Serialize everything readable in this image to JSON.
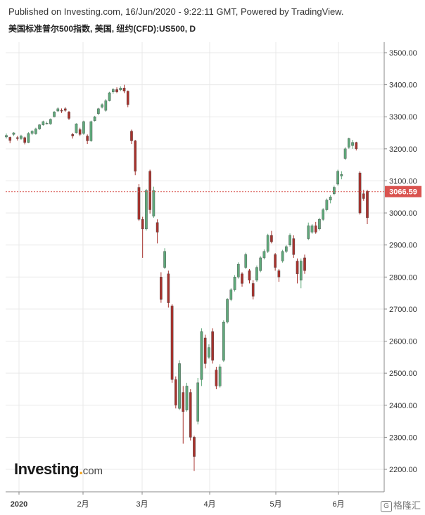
{
  "header": {
    "published": "Published on Investing.com, 16/Jun/2020 - 9:22:11 GMT, Powered by TradingView.",
    "instrument": "美国标准普尔500指数, 美国, 纽约(CFD):US500, D"
  },
  "logo": {
    "main": "Investing",
    "suffix": "com"
  },
  "watermark": {
    "text": "格隆汇"
  },
  "colors": {
    "up": "#5fa97b",
    "down": "#a8322d",
    "last_price": "#d9534f",
    "grid": "#e9e9e9"
  },
  "chart_data": {
    "type": "candlestick",
    "title": "美国标准普尔500指数, 美国, 纽约(CFD):US500, D",
    "ylim": [
      2160,
      3540
    ],
    "y_ticks": [
      2200,
      2300,
      2400,
      2500,
      2600,
      2700,
      2800,
      2900,
      3000,
      3100,
      3200,
      3300,
      3400,
      3500
    ],
    "x_tick_labels": [
      "2020",
      "2月",
      "3月",
      "4月",
      "5月",
      "6月"
    ],
    "last_price": 3066.59,
    "candles": [
      {
        "o": 3237,
        "c": 3242,
        "h": 3248,
        "l": 3232
      },
      {
        "o": 3236,
        "c": 3226,
        "h": 3238,
        "l": 3218
      },
      {
        "o": 3245,
        "c": 3250,
        "h": 3252,
        "l": 3240
      },
      {
        "o": 3235,
        "c": 3232,
        "h": 3240,
        "l": 3226
      },
      {
        "o": 3232,
        "c": 3240,
        "h": 3244,
        "l": 3228
      },
      {
        "o": 3235,
        "c": 3220,
        "h": 3238,
        "l": 3214
      },
      {
        "o": 3220,
        "c": 3248,
        "h": 3252,
        "l": 3218
      },
      {
        "o": 3248,
        "c": 3255,
        "h": 3258,
        "l": 3243
      },
      {
        "o": 3247,
        "c": 3262,
        "h": 3266,
        "l": 3244
      },
      {
        "o": 3262,
        "c": 3275,
        "h": 3277,
        "l": 3259
      },
      {
        "o": 3275,
        "c": 3285,
        "h": 3288,
        "l": 3272
      },
      {
        "o": 3280,
        "c": 3280,
        "h": 3285,
        "l": 3276
      },
      {
        "o": 3278,
        "c": 3292,
        "h": 3295,
        "l": 3275
      },
      {
        "o": 3300,
        "c": 3315,
        "h": 3318,
        "l": 3298
      },
      {
        "o": 3318,
        "c": 3325,
        "h": 3330,
        "l": 3315
      },
      {
        "o": 3320,
        "c": 3318,
        "h": 3326,
        "l": 3312
      },
      {
        "o": 3325,
        "c": 3320,
        "h": 3330,
        "l": 3316
      },
      {
        "o": 3315,
        "c": 3295,
        "h": 3318,
        "l": 3290
      },
      {
        "o": 3245,
        "c": 3240,
        "h": 3250,
        "l": 3232
      },
      {
        "o": 3250,
        "c": 3278,
        "h": 3280,
        "l": 3248
      },
      {
        "o": 3260,
        "c": 3245,
        "h": 3266,
        "l": 3240
      },
      {
        "o": 3248,
        "c": 3285,
        "h": 3288,
        "l": 3244
      },
      {
        "o": 3240,
        "c": 3225,
        "h": 3245,
        "l": 3215
      },
      {
        "o": 3225,
        "c": 3285,
        "h": 3288,
        "l": 3222
      },
      {
        "o": 3288,
        "c": 3300,
        "h": 3303,
        "l": 3285
      },
      {
        "o": 3310,
        "c": 3325,
        "h": 3328,
        "l": 3305
      },
      {
        "o": 3330,
        "c": 3338,
        "h": 3342,
        "l": 3326
      },
      {
        "o": 3320,
        "c": 3350,
        "h": 3355,
        "l": 3316
      },
      {
        "o": 3350,
        "c": 3375,
        "h": 3378,
        "l": 3348
      },
      {
        "o": 3378,
        "c": 3385,
        "h": 3390,
        "l": 3372
      },
      {
        "o": 3385,
        "c": 3378,
        "h": 3392,
        "l": 3374
      },
      {
        "o": 3384,
        "c": 3390,
        "h": 3395,
        "l": 3380
      },
      {
        "o": 3390,
        "c": 3380,
        "h": 3400,
        "l": 3374
      },
      {
        "o": 3380,
        "c": 3338,
        "h": 3382,
        "l": 3330
      },
      {
        "o": 3255,
        "c": 3225,
        "h": 3260,
        "l": 3215
      },
      {
        "o": 3225,
        "c": 3130,
        "h": 3228,
        "l": 3118
      },
      {
        "o": 3080,
        "c": 2980,
        "h": 3090,
        "l": 2975
      },
      {
        "o": 2980,
        "c": 2950,
        "h": 2988,
        "l": 2860
      },
      {
        "o": 2950,
        "c": 3070,
        "h": 3075,
        "l": 2945
      },
      {
        "o": 3130,
        "c": 3010,
        "h": 3135,
        "l": 2998
      },
      {
        "o": 2990,
        "c": 3070,
        "h": 3082,
        "l": 2985
      },
      {
        "o": 2970,
        "c": 2940,
        "h": 2980,
        "l": 2905
      },
      {
        "o": 2800,
        "c": 2730,
        "h": 2815,
        "l": 2720
      },
      {
        "o": 2830,
        "c": 2880,
        "h": 2890,
        "l": 2825
      },
      {
        "o": 2810,
        "c": 2720,
        "h": 2820,
        "l": 2705
      },
      {
        "o": 2710,
        "c": 2480,
        "h": 2715,
        "l": 2470
      },
      {
        "o": 2480,
        "c": 2400,
        "h": 2490,
        "l": 2390
      },
      {
        "o": 2390,
        "c": 2530,
        "h": 2540,
        "l": 2385
      },
      {
        "o": 2440,
        "c": 2380,
        "h": 2460,
        "l": 2280
      },
      {
        "o": 2385,
        "c": 2460,
        "h": 2470,
        "l": 2380
      },
      {
        "o": 2440,
        "c": 2300,
        "h": 2450,
        "l": 2290
      },
      {
        "o": 2300,
        "c": 2240,
        "h": 2305,
        "l": 2195
      },
      {
        "o": 2350,
        "c": 2470,
        "h": 2485,
        "l": 2340
      },
      {
        "o": 2480,
        "c": 2630,
        "h": 2640,
        "l": 2460
      },
      {
        "o": 2610,
        "c": 2530,
        "h": 2620,
        "l": 2515
      },
      {
        "o": 2550,
        "c": 2580,
        "h": 2590,
        "l": 2545
      },
      {
        "o": 2630,
        "c": 2540,
        "h": 2640,
        "l": 2530
      },
      {
        "o": 2510,
        "c": 2460,
        "h": 2520,
        "l": 2450
      },
      {
        "o": 2460,
        "c": 2520,
        "h": 2528,
        "l": 2455
      },
      {
        "o": 2540,
        "c": 2660,
        "h": 2665,
        "l": 2535
      },
      {
        "o": 2660,
        "c": 2730,
        "h": 2735,
        "l": 2655
      },
      {
        "o": 2730,
        "c": 2760,
        "h": 2765,
        "l": 2725
      },
      {
        "o": 2760,
        "c": 2800,
        "h": 2806,
        "l": 2755
      },
      {
        "o": 2800,
        "c": 2840,
        "h": 2846,
        "l": 2795
      },
      {
        "o": 2810,
        "c": 2780,
        "h": 2815,
        "l": 2770
      },
      {
        "o": 2830,
        "c": 2870,
        "h": 2876,
        "l": 2825
      },
      {
        "o": 2820,
        "c": 2790,
        "h": 2825,
        "l": 2780
      },
      {
        "o": 2780,
        "c": 2740,
        "h": 2790,
        "l": 2730
      },
      {
        "o": 2790,
        "c": 2830,
        "h": 2836,
        "l": 2785
      },
      {
        "o": 2820,
        "c": 2860,
        "h": 2865,
        "l": 2815
      },
      {
        "o": 2860,
        "c": 2880,
        "h": 2886,
        "l": 2855
      },
      {
        "o": 2880,
        "c": 2930,
        "h": 2935,
        "l": 2875
      },
      {
        "o": 2930,
        "c": 2910,
        "h": 2944,
        "l": 2905
      },
      {
        "o": 2870,
        "c": 2830,
        "h": 2875,
        "l": 2820
      },
      {
        "o": 2820,
        "c": 2800,
        "h": 2825,
        "l": 2785
      },
      {
        "o": 2850,
        "c": 2880,
        "h": 2885,
        "l": 2845
      },
      {
        "o": 2880,
        "c": 2895,
        "h": 2900,
        "l": 2875
      },
      {
        "o": 2900,
        "c": 2930,
        "h": 2936,
        "l": 2895
      },
      {
        "o": 2920,
        "c": 2870,
        "h": 2930,
        "l": 2860
      },
      {
        "o": 2850,
        "c": 2810,
        "h": 2858,
        "l": 2780
      },
      {
        "o": 2790,
        "c": 2850,
        "h": 2858,
        "l": 2765
      },
      {
        "o": 2860,
        "c": 2820,
        "h": 2870,
        "l": 2810
      },
      {
        "o": 2920,
        "c": 2960,
        "h": 2970,
        "l": 2915
      },
      {
        "o": 2940,
        "c": 2960,
        "h": 2965,
        "l": 2935
      },
      {
        "o": 2960,
        "c": 2940,
        "h": 2972,
        "l": 2935
      },
      {
        "o": 2950,
        "c": 2980,
        "h": 2985,
        "l": 2945
      },
      {
        "o": 2980,
        "c": 3010,
        "h": 3015,
        "l": 2975
      },
      {
        "o": 3010,
        "c": 3040,
        "h": 3045,
        "l": 3005
      },
      {
        "o": 3040,
        "c": 3050,
        "h": 3055,
        "l": 3030
      },
      {
        "o": 3060,
        "c": 3080,
        "h": 3085,
        "l": 3055
      },
      {
        "o": 3090,
        "c": 3130,
        "h": 3135,
        "l": 3085
      },
      {
        "o": 3115,
        "c": 3120,
        "h": 3130,
        "l": 3105
      },
      {
        "o": 3170,
        "c": 3200,
        "h": 3205,
        "l": 3165
      },
      {
        "o": 3205,
        "c": 3232,
        "h": 3235,
        "l": 3200
      },
      {
        "o": 3210,
        "c": 3220,
        "h": 3228,
        "l": 3200
      },
      {
        "o": 3220,
        "c": 3200,
        "h": 3222,
        "l": 3195
      },
      {
        "o": 3125,
        "c": 3000,
        "h": 3130,
        "l": 2995
      },
      {
        "o": 3060,
        "c": 3045,
        "h": 3072,
        "l": 3038
      },
      {
        "o": 3068,
        "c": 2985,
        "h": 3072,
        "l": 2965
      }
    ]
  }
}
